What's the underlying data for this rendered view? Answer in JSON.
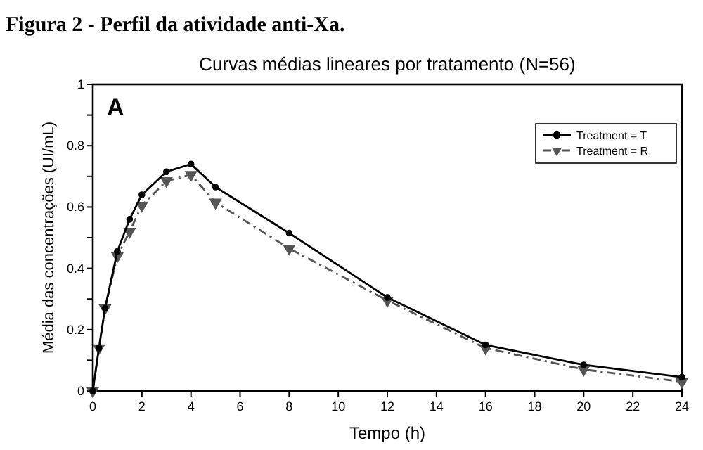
{
  "chart_data": {
    "type": "line",
    "title": "Figura 2 - Perfil da atividade anti-Xa.",
    "subtitle": "Curvas médias lineares por tratamento (N=56)",
    "xlabel": "Tempo (h)",
    "ylabel": "Média das concentrações (UI/mL)",
    "annotations": [
      "A"
    ],
    "x": [
      0,
      0.25,
      0.5,
      1,
      1.5,
      2,
      3,
      4,
      5,
      8,
      12,
      16,
      20,
      24
    ],
    "series": [
      {
        "name": "Treatment = T",
        "color": "#000000",
        "marker": "circle",
        "line_style": "solid",
        "values": [
          0,
          0.14,
          0.27,
          0.455,
          0.56,
          0.64,
          0.715,
          0.74,
          0.665,
          0.515,
          0.305,
          0.15,
          0.085,
          0.045
        ]
      },
      {
        "name": "Treatment = R",
        "color": "#555555",
        "marker": "triangle",
        "line_style": "dashed",
        "values": [
          0,
          0.14,
          0.27,
          0.44,
          0.52,
          0.605,
          0.685,
          0.705,
          0.615,
          0.465,
          0.295,
          0.14,
          0.07,
          0.03
        ]
      }
    ],
    "xlim": [
      0,
      24
    ],
    "xticks": [
      0,
      2,
      4,
      6,
      8,
      10,
      12,
      14,
      16,
      18,
      20,
      22,
      24
    ],
    "ylim": [
      0,
      1
    ],
    "yticks": [
      0,
      {
        "value": 0.1,
        "label": null
      },
      0.2,
      {
        "value": 0.3,
        "label": null
      },
      0.4,
      {
        "value": 0.5,
        "label": null
      },
      0.6,
      {
        "value": 0.7,
        "label": null
      },
      0.8,
      {
        "value": 0.9,
        "label": null
      },
      1
    ],
    "grid": false,
    "legend": "top right"
  }
}
